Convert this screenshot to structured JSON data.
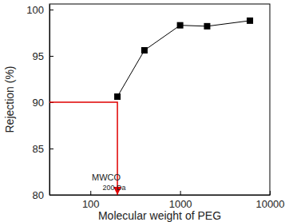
{
  "chart_data": {
    "type": "line",
    "x_label": "Molecular weight of PEG",
    "y_label": "Rejection (%)",
    "x": [
      200,
      400,
      1000,
      2000,
      6000
    ],
    "values": [
      90.6,
      95.6,
      98.3,
      98.2,
      98.8
    ],
    "color": "#000000",
    "marker": "square",
    "line_style": "solid",
    "log": "x",
    "xlim": [
      35,
      10000
    ],
    "xticks": [
      100,
      1000,
      10000
    ],
    "ylim": [
      80,
      100.6
    ],
    "yticks": [
      80,
      85,
      90,
      95,
      100
    ],
    "annotation": {
      "texts": [
        "MWCO",
        "200 Da"
      ],
      "x": 200,
      "y": 90,
      "color": "#e00000"
    }
  }
}
